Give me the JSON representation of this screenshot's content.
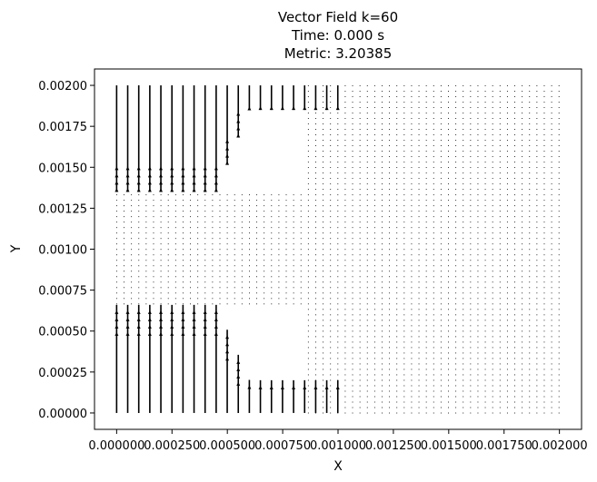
{
  "chart_data": {
    "type": "quiver",
    "title_lines": [
      "Vector Field k=60",
      "Time: 0.000 s",
      "Metric: 3.20385"
    ],
    "xlabel": "X",
    "ylabel": "Y",
    "xlim": [
      -0.0001,
      0.0021
    ],
    "ylim": [
      -0.0001,
      0.0021
    ],
    "x_ticks": [
      {
        "value": 0.0,
        "label": "0.000000"
      },
      {
        "value": 0.00025,
        "label": "0.000250"
      },
      {
        "value": 0.0005,
        "label": "0.000500"
      },
      {
        "value": 0.00075,
        "label": "0.000750"
      },
      {
        "value": 0.001,
        "label": "0.001000"
      },
      {
        "value": 0.00125,
        "label": "0.001250"
      },
      {
        "value": 0.0015,
        "label": "0.001500"
      },
      {
        "value": 0.00175,
        "label": "0.001750"
      },
      {
        "value": 0.002,
        "label": "0.002000"
      }
    ],
    "y_ticks": [
      {
        "value": 0.0,
        "label": "0.00000"
      },
      {
        "value": 0.00025,
        "label": "0.00025"
      },
      {
        "value": 0.0005,
        "label": "0.00050"
      },
      {
        "value": 0.00075,
        "label": "0.00075"
      },
      {
        "value": 0.001,
        "label": "0.00100"
      },
      {
        "value": 0.00125,
        "label": "0.00125"
      },
      {
        "value": 0.0015,
        "label": "0.00150"
      },
      {
        "value": 0.00175,
        "label": "0.00175"
      },
      {
        "value": 0.002,
        "label": "0.00200"
      }
    ],
    "grid": false,
    "arrow_color": "#000000",
    "field_columns": {
      "count": 61,
      "x_start": 0.0,
      "x_step": 3.33e-05,
      "strong_columns": 26,
      "left_columns_spacing_factor": 1.5
    },
    "field_rows": {
      "count": 61,
      "y_start": 0.0,
      "y_step": 3.33e-05
    },
    "jet_band_upper": {
      "y_from": 0.00135,
      "y_to": 0.002
    },
    "jet_band_lower": {
      "y_from": 0.0,
      "y_to": 0.00066
    }
  }
}
